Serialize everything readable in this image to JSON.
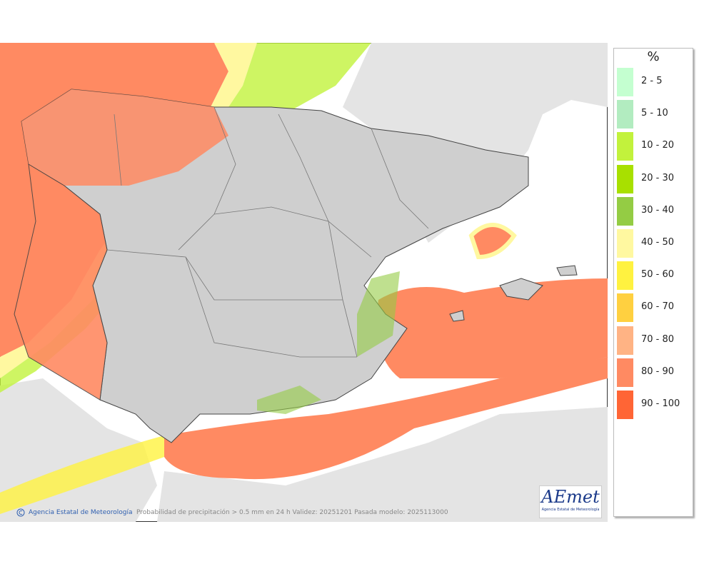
{
  "legend": {
    "title": "%",
    "items": [
      {
        "label": "2 - 5",
        "color": "#c4ffd0"
      },
      {
        "label": "5 - 10",
        "color": "#b2ecc0"
      },
      {
        "label": "10 - 20",
        "color": "#c2f23c"
      },
      {
        "label": "20 - 30",
        "color": "#a8e000"
      },
      {
        "label": "30 - 40",
        "color": "#94cc44"
      },
      {
        "label": "40 - 50",
        "color": "#fff8a0"
      },
      {
        "label": "50 - 60",
        "color": "#fff240"
      },
      {
        "label": "60 - 70",
        "color": "#ffd040"
      },
      {
        "label": "70 - 80",
        "color": "#ffb384"
      },
      {
        "label": "80 - 90",
        "color": "#ff8a62"
      },
      {
        "label": "90 - 100",
        "color": "#ff6535"
      }
    ]
  },
  "footer": {
    "credit": "Agencia Estatal de Meteorología",
    "caption": "Probabilidad de precipitación > 0.5 mm en 24 h Validez: 20251201 Pasada modelo: 2025113000"
  },
  "logo": {
    "text": "AEmet",
    "subtitle": "Agencia Estatal de Meteorología"
  }
}
